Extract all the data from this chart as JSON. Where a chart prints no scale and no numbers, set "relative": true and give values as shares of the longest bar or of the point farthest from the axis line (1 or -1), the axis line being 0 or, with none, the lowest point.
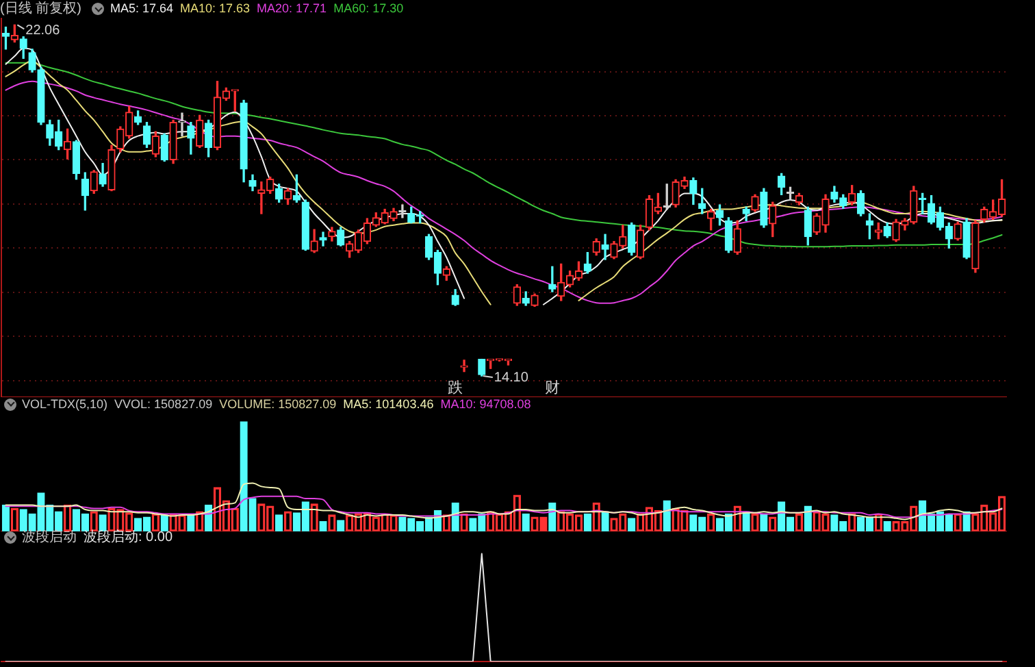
{
  "chart_data": [
    {
      "type": "candlestick",
      "title": "(日线 前复权)",
      "legend": "top left",
      "tick_labels": false,
      "grid": "y",
      "ylim": [
        13.62,
        22.22
      ],
      "yticks": [
        {
          "value": 14,
          "label": null
        },
        {
          "value": 15,
          "label": null
        },
        {
          "value": 16,
          "label": null
        },
        {
          "value": 17,
          "label": null
        },
        {
          "value": 18,
          "label": null
        },
        {
          "value": 19,
          "label": null
        },
        {
          "value": 20,
          "label": null
        },
        {
          "value": 21,
          "label": null
        }
      ],
      "categories": [
        null,
        null,
        null,
        null,
        null,
        null,
        null,
        null,
        null,
        null,
        null,
        null,
        null,
        null,
        null,
        null,
        null,
        null,
        null,
        null,
        null,
        null,
        null,
        null,
        null,
        null,
        null,
        null,
        null,
        null,
        null,
        null,
        null,
        null,
        null,
        null,
        null,
        null,
        null,
        null,
        null,
        null,
        null,
        null,
        null,
        null,
        null,
        null,
        null,
        null,
        null,
        null,
        null,
        null,
        null,
        null,
        null,
        null,
        null,
        null,
        null,
        null,
        null,
        null,
        null,
        null,
        null,
        null,
        null,
        null,
        null,
        null,
        null,
        null,
        null,
        null,
        null,
        null,
        null,
        null,
        null,
        null,
        null,
        null,
        null,
        null,
        null,
        null,
        null,
        null,
        null,
        null,
        null,
        null,
        null,
        null,
        null,
        null,
        null,
        null,
        null,
        null,
        null,
        null,
        null,
        null,
        null,
        null,
        null,
        null,
        null,
        null,
        null,
        null
      ],
      "ohlc": [
        [
          21.87,
          22.01,
          21.51,
          21.8
        ],
        [
          21.72,
          22.06,
          21.67,
          21.82
        ],
        [
          21.74,
          21.79,
          21.3,
          21.53
        ],
        [
          21.43,
          21.51,
          20.99,
          21.04
        ],
        [
          21.04,
          21.1,
          19.8,
          19.85
        ],
        [
          19.8,
          19.9,
          19.33,
          19.49
        ],
        [
          19.64,
          19.9,
          19.23,
          19.31
        ],
        [
          19.23,
          19.7,
          19.02,
          19.42
        ],
        [
          19.41,
          19.44,
          18.56,
          18.69
        ],
        [
          18.56,
          18.71,
          17.86,
          18.19
        ],
        [
          18.3,
          18.76,
          18.24,
          18.73
        ],
        [
          18.68,
          18.92,
          18.4,
          18.45
        ],
        [
          18.32,
          19.33,
          18.3,
          19.23
        ],
        [
          19.25,
          19.75,
          19.18,
          19.7
        ],
        [
          19.54,
          20.21,
          19.49,
          20.08
        ],
        [
          19.98,
          20.11,
          19.8,
          19.85
        ],
        [
          19.77,
          19.85,
          19.28,
          19.35
        ],
        [
          19.13,
          19.64,
          19.07,
          19.54
        ],
        [
          19.56,
          19.59,
          18.97,
          19.0
        ],
        [
          19.0,
          19.9,
          18.92,
          19.85
        ],
        [
          19.85,
          20.06,
          19.54,
          19.87
        ],
        [
          19.77,
          19.85,
          19.13,
          19.49
        ],
        [
          19.31,
          20.01,
          19.28,
          19.9
        ],
        [
          19.83,
          19.9,
          19.07,
          19.28
        ],
        [
          19.28,
          20.78,
          19.23,
          20.42
        ],
        [
          20.39,
          20.63,
          20.35,
          20.56
        ],
        [
          20.56,
          20.58,
          20.11,
          20.58
        ],
        [
          20.29,
          20.35,
          18.5,
          18.79
        ],
        [
          18.53,
          18.66,
          18.3,
          18.4
        ],
        [
          18.24,
          18.5,
          17.78,
          18.32
        ],
        [
          18.3,
          18.61,
          18.24,
          18.56
        ],
        [
          18.35,
          18.45,
          18.04,
          18.11
        ],
        [
          18.11,
          18.35,
          17.99,
          18.3
        ],
        [
          18.19,
          18.66,
          18.04,
          18.09
        ],
        [
          18.04,
          18.09,
          16.95,
          16.97
        ],
        [
          16.93,
          17.42,
          16.9,
          17.16
        ],
        [
          17.24,
          17.36,
          17.05,
          17.18
        ],
        [
          17.26,
          17.47,
          17.16,
          17.38
        ],
        [
          17.41,
          17.47,
          17.05,
          17.07
        ],
        [
          16.93,
          17.15,
          16.79,
          17.1
        ],
        [
          16.95,
          17.41,
          16.9,
          17.36
        ],
        [
          17.15,
          17.67,
          17.1,
          17.57
        ],
        [
          17.52,
          17.8,
          17.49,
          17.69
        ],
        [
          17.57,
          17.88,
          17.55,
          17.8
        ],
        [
          17.67,
          17.9,
          17.62,
          17.83
        ],
        [
          17.83,
          17.98,
          17.69,
          17.82
        ],
        [
          17.78,
          17.93,
          17.57,
          17.59
        ],
        [
          17.73,
          17.83,
          17.57,
          17.72
        ],
        [
          17.26,
          17.31,
          16.74,
          16.79
        ],
        [
          16.9,
          16.95,
          16.17,
          16.43
        ],
        [
          16.38,
          16.58,
          16.27,
          16.53
        ],
        [
          15.93,
          16.06,
          15.7,
          15.72
        ],
        [
          14.3,
          14.46,
          14.2,
          14.32
        ],
        null,
        [
          14.48,
          14.48,
          14.1,
          14.13
        ],
        [
          14.45,
          14.47,
          14.27,
          14.46
        ],
        [
          14.46,
          14.48,
          14.44,
          14.46
        ],
        [
          14.45,
          14.48,
          14.35,
          14.47
        ],
        [
          15.75,
          16.17,
          15.7,
          16.12
        ],
        [
          15.86,
          16.01,
          15.7,
          15.75
        ],
        [
          15.7,
          15.96,
          15.68,
          15.93
        ],
        null,
        [
          16.17,
          16.58,
          16.01,
          16.07
        ],
        [
          15.91,
          16.64,
          15.81,
          16.22
        ],
        [
          16.17,
          16.48,
          16.12,
          16.38
        ],
        [
          16.32,
          16.69,
          16.27,
          16.48
        ],
        [
          16.64,
          16.9,
          16.43,
          16.48
        ],
        [
          16.9,
          17.21,
          16.84,
          17.15
        ],
        [
          17.07,
          17.31,
          16.74,
          16.97
        ],
        [
          16.79,
          17.15,
          16.76,
          17.1
        ],
        [
          17.05,
          17.52,
          17.0,
          17.26
        ],
        [
          17.52,
          17.57,
          16.84,
          16.9
        ],
        [
          16.79,
          17.52,
          16.76,
          17.41
        ],
        [
          17.47,
          18.19,
          17.41,
          18.11
        ],
        [
          17.83,
          18.24,
          17.78,
          17.93
        ],
        [
          17.94,
          18.45,
          17.88,
          17.93
        ],
        [
          17.98,
          18.55,
          17.93,
          18.5
        ],
        [
          18.4,
          18.61,
          18.35,
          18.53
        ],
        [
          18.53,
          18.59,
          17.99,
          18.24
        ],
        [
          18.01,
          18.35,
          17.78,
          17.9
        ],
        [
          17.67,
          17.88,
          17.41,
          17.83
        ],
        [
          17.85,
          17.98,
          17.52,
          17.69
        ],
        [
          17.62,
          17.69,
          16.9,
          16.95
        ],
        [
          16.9,
          17.62,
          16.86,
          17.44
        ],
        [
          17.88,
          17.93,
          17.62,
          17.78
        ],
        [
          17.86,
          18.21,
          17.83,
          18.17
        ],
        [
          18.27,
          18.35,
          17.47,
          17.52
        ],
        [
          17.55,
          18.04,
          17.26,
          17.96
        ],
        [
          18.63,
          18.69,
          18.21,
          18.38
        ],
        [
          18.25,
          18.38,
          18.09,
          18.24
        ],
        [
          18.04,
          18.24,
          17.98,
          18.19
        ],
        [
          17.86,
          17.93,
          17.07,
          17.26
        ],
        [
          17.36,
          17.78,
          17.31,
          17.73
        ],
        [
          17.52,
          18.21,
          17.36,
          18.11
        ],
        [
          18.27,
          18.4,
          18.04,
          18.11
        ],
        [
          18.14,
          18.21,
          17.9,
          17.96
        ],
        [
          18.04,
          18.42,
          17.98,
          18.24
        ],
        [
          18.24,
          18.3,
          17.73,
          17.78
        ],
        [
          17.62,
          17.78,
          17.21,
          17.52
        ],
        [
          17.36,
          17.57,
          17.21,
          17.41
        ],
        [
          17.49,
          17.57,
          17.24,
          17.28
        ],
        [
          17.18,
          17.65,
          17.15,
          17.59
        ],
        [
          17.52,
          17.67,
          17.41,
          17.62
        ],
        [
          17.59,
          18.4,
          17.55,
          18.3
        ],
        [
          18.11,
          18.24,
          17.78,
          18.1
        ],
        [
          18.01,
          18.19,
          17.55,
          17.59
        ],
        [
          17.8,
          17.93,
          17.41,
          17.47
        ],
        [
          17.49,
          17.57,
          17.0,
          17.21
        ],
        [
          17.21,
          17.59,
          17.18,
          17.55
        ],
        [
          17.59,
          17.67,
          16.76,
          16.79
        ],
        [
          16.53,
          17.62,
          16.45,
          17.57
        ],
        [
          17.65,
          17.93,
          17.59,
          17.88
        ],
        [
          17.7,
          18.09,
          17.65,
          17.83
        ],
        [
          17.76,
          18.55,
          17.72,
          18.11
        ]
      ],
      "colors": [
        "#54fcfc",
        "#ff3232",
        "#54fcfc",
        "#54fcfc",
        "#54fcfc",
        "#54fcfc",
        "#54fcfc",
        "#ff3232",
        "#54fcfc",
        "#54fcfc",
        "#ff3232",
        "#54fcfc",
        "#ff3232",
        "#ff3232",
        "#ff3232",
        "#54fcfc",
        "#54fcfc",
        "#ff3232",
        "#54fcfc",
        "#ff3232",
        "#d2d2d2",
        "#54fcfc",
        "#ff3232",
        "#54fcfc",
        "#ff3232",
        "#ff3232",
        "#ff3232",
        "#54fcfc",
        "#54fcfc",
        "#ff3232",
        "#ff3232",
        "#54fcfc",
        "#ff3232",
        "#54fcfc",
        "#54fcfc",
        "#ff3232",
        "#54fcfc",
        "#ff3232",
        "#54fcfc",
        "#ff3232",
        "#ff3232",
        "#ff3232",
        "#ff3232",
        "#ff3232",
        "#ff3232",
        "#d2d2d2",
        "#54fcfc",
        "#54fcfc",
        "#54fcfc",
        "#54fcfc",
        "#ff3232",
        "#54fcfc",
        "#ff3232",
        "#54fcfc",
        "#54fcfc",
        "#ff3232",
        "#ff3232",
        "#ff3232",
        "#ff3232",
        "#54fcfc",
        "#ff3232",
        "#ff3232",
        "#54fcfc",
        "#ff3232",
        "#ff3232",
        "#ff3232",
        "#54fcfc",
        "#ff3232",
        "#54fcfc",
        "#ff3232",
        "#ff3232",
        "#54fcfc",
        "#ff3232",
        "#ff3232",
        "#ff3232",
        "#d2d2d2",
        "#ff3232",
        "#ff3232",
        "#54fcfc",
        "#54fcfc",
        "#ff3232",
        "#54fcfc",
        "#54fcfc",
        "#ff3232",
        "#54fcfc",
        "#ff3232",
        "#54fcfc",
        "#ff3232",
        "#54fcfc",
        "#d2d2d2",
        "#ff3232",
        "#54fcfc",
        "#ff3232",
        "#ff3232",
        "#54fcfc",
        "#54fcfc",
        "#ff3232",
        "#54fcfc",
        "#54fcfc",
        "#ff3232",
        "#54fcfc",
        "#ff3232",
        "#ff3232",
        "#ff3232",
        "#54fcfc",
        "#54fcfc",
        "#54fcfc",
        "#54fcfc",
        "#ff3232",
        "#54fcfc",
        "#ff3232",
        "#ff3232",
        "#ff3232",
        "#ff3232"
      ],
      "value_labels": [
        null,
        "22.06",
        null,
        null,
        null,
        null,
        null,
        null,
        null,
        null,
        null,
        null,
        null,
        null,
        null,
        null,
        null,
        null,
        null,
        null,
        null,
        null,
        null,
        null,
        null,
        null,
        null,
        null,
        null,
        null,
        null,
        null,
        null,
        null,
        null,
        null,
        null,
        null,
        null,
        null,
        null,
        null,
        null,
        null,
        null,
        null,
        null,
        null,
        null,
        null,
        null,
        "跌",
        null,
        null,
        "14.10",
        null,
        null,
        null,
        null,
        null,
        null,
        null,
        "财",
        null,
        null,
        null,
        null,
        null,
        null,
        null,
        null,
        null,
        null,
        null,
        null,
        null,
        null,
        null,
        null,
        null,
        null,
        null,
        null,
        null,
        null,
        null,
        null,
        null,
        null,
        null,
        null,
        null,
        null,
        null,
        null,
        null,
        null,
        null,
        null,
        null,
        null,
        null,
        null,
        null,
        null,
        null,
        null,
        null,
        null,
        null,
        null,
        null,
        null,
        null
      ],
      "series": [
        {
          "name": "MA5: 17.64",
          "type": "line",
          "color": "#f0f0f0",
          "values": [
            21.17,
            21.35,
            21.53,
            21.49,
            21.09,
            20.63,
            20.26,
            19.9,
            19.54,
            19.18,
            18.92,
            18.66,
            18.81,
            19.18,
            19.44,
            19.54,
            19.59,
            19.62,
            19.59,
            19.62,
            19.64,
            19.64,
            19.66,
            19.7,
            19.85,
            20.01,
            20.08,
            19.9,
            19.54,
            19.07,
            18.55,
            18.4,
            18.35,
            18.29,
            18.04,
            17.78,
            17.57,
            17.36,
            17.24,
            17.26,
            17.38,
            17.52,
            17.62,
            17.69,
            17.74,
            17.78,
            17.78,
            17.72,
            17.52,
            17.15,
            16.79,
            16.33,
            15.86,
            null,
            null,
            null,
            null,
            null,
            null,
            null,
            null,
            15.72,
            15.86,
            16.01,
            16.2,
            16.38,
            16.45,
            16.58,
            16.79,
            16.89,
            16.97,
            17.05,
            17.21,
            17.41,
            17.62,
            17.88,
            18.09,
            18.24,
            18.24,
            18.17,
            17.93,
            17.67,
            17.57,
            17.59,
            17.72,
            17.8,
            17.86,
            17.93,
            18.04,
            18.09,
            18.04,
            17.9,
            17.86,
            17.93,
            17.98,
            18.01,
            18.04,
            17.98,
            17.83,
            17.67,
            17.57,
            17.55,
            17.59,
            17.72,
            17.78,
            17.78,
            17.72,
            17.67,
            17.62,
            17.57,
            17.57,
            17.59,
            17.62,
            17.64
          ]
        },
        {
          "name": "MA10: 17.63",
          "type": "line",
          "color": "#e8dc78",
          "values": [
            20.89,
            21.01,
            21.15,
            21.25,
            21.09,
            20.91,
            20.73,
            20.58,
            20.35,
            20.11,
            19.9,
            19.64,
            19.38,
            19.25,
            19.18,
            19.18,
            19.2,
            19.23,
            19.33,
            19.46,
            19.51,
            19.56,
            19.62,
            19.67,
            19.75,
            19.8,
            19.85,
            19.87,
            19.75,
            19.59,
            19.33,
            19.07,
            18.81,
            18.5,
            18.24,
            18.04,
            17.86,
            17.67,
            17.5,
            17.38,
            17.33,
            17.36,
            17.41,
            17.49,
            17.52,
            17.55,
            17.57,
            17.57,
            17.52,
            17.41,
            17.26,
            16.89,
            16.64,
            16.33,
            16.01,
            15.72,
            null,
            null,
            null,
            null,
            null,
            null,
            null,
            null,
            null,
            15.81,
            15.96,
            16.1,
            16.22,
            16.35,
            16.58,
            16.74,
            16.88,
            17.04,
            17.2,
            17.34,
            17.49,
            17.65,
            17.76,
            17.8,
            17.85,
            17.88,
            17.88,
            17.9,
            17.93,
            17.96,
            17.98,
            17.98,
            17.96,
            17.93,
            17.91,
            17.9,
            17.9,
            17.91,
            17.93,
            17.96,
            18.01,
            18.04,
            17.98,
            17.9,
            17.83,
            17.78,
            17.78,
            17.81,
            17.83,
            17.82,
            17.8,
            17.76,
            17.71,
            17.67,
            17.63,
            17.61,
            17.62,
            17.63
          ]
        },
        {
          "name": "MA20: 17.71",
          "type": "line",
          "color": "#e040e0",
          "values": [
            20.58,
            20.68,
            20.75,
            20.78,
            20.75,
            20.72,
            20.68,
            20.63,
            20.56,
            20.47,
            20.41,
            20.36,
            20.31,
            20.26,
            20.22,
            20.18,
            20.13,
            20.07,
            20.01,
            19.95,
            19.9,
            19.8,
            19.66,
            19.56,
            19.52,
            19.54,
            19.54,
            19.52,
            19.49,
            19.47,
            19.44,
            19.38,
            19.33,
            19.28,
            19.18,
            19.07,
            18.97,
            18.83,
            18.71,
            18.66,
            18.61,
            18.53,
            18.46,
            18.4,
            18.29,
            18.12,
            17.96,
            17.83,
            17.67,
            17.55,
            17.43,
            17.31,
            17.17,
            17.0,
            16.86,
            16.72,
            16.61,
            16.51,
            16.43,
            16.37,
            16.3,
            16.24,
            16.16,
            16.09,
            15.99,
            15.89,
            15.81,
            15.76,
            15.75,
            15.76,
            15.81,
            15.86,
            15.96,
            16.12,
            16.27,
            16.48,
            16.72,
            16.89,
            17.05,
            17.15,
            17.28,
            17.41,
            17.49,
            17.55,
            17.59,
            17.62,
            17.66,
            17.69,
            17.73,
            17.78,
            17.81,
            17.83,
            17.85,
            17.87,
            17.88,
            17.9,
            17.92,
            17.93,
            17.92,
            17.89,
            17.86,
            17.82,
            17.78,
            17.76,
            17.73,
            17.71,
            17.7,
            17.69,
            17.67,
            17.65,
            17.64,
            17.65,
            17.67,
            17.71
          ]
        },
        {
          "name": "MA60: 17.30",
          "type": "line",
          "color": "#3cc83c",
          "values": [
            21.2,
            21.2,
            21.2,
            21.2,
            21.15,
            21.09,
            21.04,
            20.99,
            20.92,
            20.84,
            20.77,
            20.72,
            20.66,
            20.61,
            20.56,
            20.51,
            20.45,
            20.39,
            20.34,
            20.28,
            20.21,
            20.16,
            20.12,
            20.08,
            20.06,
            20.06,
            20.05,
            20.03,
            20.0,
            19.96,
            19.93,
            19.89,
            19.85,
            19.81,
            19.77,
            19.73,
            19.68,
            19.64,
            19.6,
            19.58,
            19.56,
            19.53,
            19.51,
            19.48,
            19.41,
            19.35,
            19.31,
            19.26,
            19.21,
            19.1,
            18.99,
            18.9,
            18.79,
            18.7,
            18.58,
            18.46,
            18.36,
            18.26,
            18.15,
            18.05,
            17.94,
            17.85,
            17.78,
            17.7,
            17.66,
            17.63,
            17.61,
            17.59,
            17.57,
            17.55,
            17.53,
            17.51,
            17.5,
            17.48,
            17.47,
            17.44,
            17.41,
            17.39,
            17.38,
            17.36,
            17.33,
            17.28,
            17.24,
            17.17,
            17.11,
            17.08,
            17.06,
            17.05,
            17.04,
            17.04,
            17.03,
            17.03,
            17.03,
            17.03,
            17.04,
            17.04,
            17.05,
            17.05,
            17.05,
            17.06,
            17.06,
            17.07,
            17.07,
            17.07,
            17.07,
            17.08,
            17.08,
            17.08,
            17.08,
            17.08,
            17.11,
            17.17,
            17.23,
            17.3
          ]
        }
      ]
    },
    {
      "type": "bar",
      "title": "VOL-TDX(5,10)",
      "subtitle": "VVOL: 150827.09",
      "annotations": [
        "VOLUME: 150827.09"
      ],
      "relative": true,
      "legend": "top left",
      "tick_labels": false,
      "categories": [
        null,
        null,
        null,
        null,
        null,
        null,
        null,
        null,
        null,
        null,
        null,
        null,
        null,
        null,
        null,
        null,
        null,
        null,
        null,
        null,
        null,
        null,
        null,
        null,
        null,
        null,
        null,
        null,
        null,
        null,
        null,
        null,
        null,
        null,
        null,
        null,
        null,
        null,
        null,
        null,
        null,
        null,
        null,
        null,
        null,
        null,
        null,
        null,
        null,
        null,
        null,
        null,
        null,
        null,
        null,
        null,
        null,
        null,
        null,
        null,
        null,
        null,
        null,
        null,
        null,
        null,
        null,
        null,
        null,
        null,
        null,
        null,
        null,
        null,
        null,
        null,
        null,
        null,
        null,
        null,
        null,
        null,
        null,
        null,
        null,
        null,
        null,
        null,
        null,
        null,
        null,
        null,
        null,
        null,
        null,
        null,
        null,
        null,
        null,
        null,
        null,
        null,
        null,
        null,
        null,
        null,
        null,
        null,
        null,
        null,
        null,
        null,
        null,
        null
      ],
      "series": [
        {
          "colors": [
            "#54fcfc",
            "#ff3232",
            "#54fcfc",
            "#54fcfc",
            "#54fcfc",
            "#54fcfc",
            "#54fcfc",
            "#ff3232",
            "#54fcfc",
            "#54fcfc",
            "#ff3232",
            "#54fcfc",
            "#ff3232",
            "#ff3232",
            "#ff3232",
            "#54fcfc",
            "#54fcfc",
            "#ff3232",
            "#54fcfc",
            "#ff3232",
            "#ff3232",
            "#54fcfc",
            "#ff3232",
            "#54fcfc",
            "#ff3232",
            "#ff3232",
            "#ff3232",
            "#54fcfc",
            "#54fcfc",
            "#ff3232",
            "#ff3232",
            "#54fcfc",
            "#ff3232",
            "#54fcfc",
            "#54fcfc",
            "#ff3232",
            "#54fcfc",
            "#ff3232",
            "#54fcfc",
            "#ff3232",
            "#ff3232",
            "#ff3232",
            "#ff3232",
            "#ff3232",
            "#ff3232",
            "#54fcfc",
            "#54fcfc",
            "#54fcfc",
            "#54fcfc",
            "#54fcfc",
            "#ff3232",
            "#54fcfc",
            "#ff3232",
            "#54fcfc",
            "#54fcfc",
            "#ff3232",
            "#ff3232",
            "#ff3232",
            "#ff3232",
            "#54fcfc",
            "#ff3232",
            "#ff3232",
            "#54fcfc",
            "#ff3232",
            "#ff3232",
            "#ff3232",
            "#54fcfc",
            "#ff3232",
            "#54fcfc",
            "#ff3232",
            "#ff3232",
            "#54fcfc",
            "#ff3232",
            "#ff3232",
            "#ff3232",
            "#54fcfc",
            "#ff3232",
            "#ff3232",
            "#54fcfc",
            "#54fcfc",
            "#ff3232",
            "#54fcfc",
            "#54fcfc",
            "#ff3232",
            "#54fcfc",
            "#ff3232",
            "#54fcfc",
            "#ff3232",
            "#54fcfc",
            "#54fcfc",
            "#ff3232",
            "#54fcfc",
            "#ff3232",
            "#ff3232",
            "#54fcfc",
            "#54fcfc",
            "#ff3232",
            "#54fcfc",
            "#54fcfc",
            "#ff3232",
            "#54fcfc",
            "#ff3232",
            "#ff3232",
            "#ff3232",
            "#54fcfc",
            "#54fcfc",
            "#54fcfc",
            "#54fcfc",
            "#ff3232",
            "#54fcfc",
            "#ff3232",
            "#ff3232",
            "#ff3232",
            "#ff3232"
          ],
          "values": [
            0.24,
            0.21,
            0.2,
            0.16,
            0.35,
            0.24,
            0.18,
            0.24,
            0.2,
            0.16,
            0.18,
            0.15,
            0.21,
            0.2,
            0.17,
            0.12,
            0.13,
            0.16,
            0.15,
            0.16,
            0.15,
            0.15,
            0.18,
            0.24,
            0.4,
            0.28,
            0.21,
            1,
            0.3,
            0.25,
            0.23,
            0.15,
            0.18,
            0.17,
            0.27,
            0.25,
            0.09,
            0.15,
            0.1,
            0.15,
            0.16,
            0.17,
            0.13,
            0.16,
            0.15,
            0.13,
            0.12,
            0.09,
            0.13,
            0.19,
            0.15,
            0.26,
            0.16,
            0.12,
            0.16,
            0.18,
            0.16,
            0.18,
            0.33,
            0.16,
            0.13,
            0.13,
            0.26,
            0.18,
            0.16,
            0.15,
            0.16,
            0.26,
            0.18,
            0.12,
            0.16,
            0.12,
            0.16,
            0.22,
            0.19,
            0.28,
            0.21,
            0.19,
            0.15,
            0.13,
            0.16,
            0.12,
            0.16,
            0.23,
            0.18,
            0.16,
            0.16,
            0.13,
            0.27,
            0.13,
            0.16,
            0.23,
            0.18,
            0.16,
            0.15,
            0.09,
            0.16,
            0.13,
            0.13,
            0.16,
            0.09,
            0.09,
            0.09,
            0.23,
            0.28,
            0.16,
            0.18,
            0.16,
            0.16,
            0.18,
            0.16,
            0.24,
            0.17,
            0.32
          ]
        },
        {
          "name": "MA5: 101403.46",
          "type": "line",
          "color": "#f0f0b4",
          "values": [
            0.24,
            0.24,
            0.24,
            0.24,
            0.23,
            0.23,
            0.23,
            0.23,
            0.24,
            0.2,
            0.19,
            0.19,
            0.18,
            0.18,
            0.18,
            0.17,
            0.17,
            0.16,
            0.15,
            0.14,
            0.15,
            0.15,
            0.16,
            0.18,
            0.22,
            0.25,
            0.26,
            0.43,
            0.44,
            0.41,
            0.4,
            0.39,
            0.22,
            0.2,
            0.2,
            0.2,
            0.19,
            0.19,
            0.17,
            0.15,
            0.13,
            0.15,
            0.14,
            0.15,
            0.15,
            0.15,
            0.14,
            0.13,
            0.12,
            0.13,
            0.14,
            0.16,
            0.18,
            0.18,
            0.17,
            0.18,
            0.16,
            0.16,
            0.2,
            0.2,
            0.19,
            0.19,
            0.2,
            0.17,
            0.17,
            0.18,
            0.18,
            0.18,
            0.18,
            0.17,
            0.18,
            0.17,
            0.15,
            0.16,
            0.17,
            0.19,
            0.21,
            0.22,
            0.2,
            0.19,
            0.17,
            0.15,
            0.14,
            0.16,
            0.17,
            0.17,
            0.18,
            0.17,
            0.18,
            0.17,
            0.17,
            0.18,
            0.19,
            0.17,
            0.18,
            0.16,
            0.15,
            0.14,
            0.13,
            0.13,
            0.13,
            0.12,
            0.11,
            0.13,
            0.16,
            0.17,
            0.19,
            0.2,
            0.19,
            0.17,
            0.17,
            0.18,
            0.18,
            0.21
          ]
        },
        {
          "name": "MA10: 94708.08",
          "type": "line",
          "color": "#e040e0",
          "values": [
            0.23,
            0.23,
            0.23,
            0.23,
            0.23,
            0.23,
            0.23,
            0.23,
            0.23,
            0.22,
            0.21,
            0.21,
            0.22,
            0.22,
            0.19,
            0.18,
            0.18,
            0.17,
            0.16,
            0.16,
            0.16,
            0.16,
            0.16,
            0.16,
            0.18,
            0.2,
            0.21,
            0.29,
            0.31,
            0.32,
            0.32,
            0.32,
            0.32,
            0.32,
            0.3,
            0.3,
            0.29,
            0.2,
            0.18,
            0.17,
            0.17,
            0.17,
            0.16,
            0.16,
            0.15,
            0.14,
            0.14,
            0.14,
            0.14,
            0.14,
            0.14,
            0.15,
            0.15,
            0.15,
            0.15,
            0.16,
            0.16,
            0.17,
            0.19,
            0.19,
            0.18,
            0.17,
            0.18,
            0.19,
            0.19,
            0.18,
            0.18,
            0.19,
            0.18,
            0.17,
            0.18,
            0.18,
            0.17,
            0.17,
            0.17,
            0.19,
            0.19,
            0.18,
            0.18,
            0.18,
            0.18,
            0.18,
            0.18,
            0.18,
            0.18,
            0.17,
            0.16,
            0.16,
            0.17,
            0.17,
            0.17,
            0.18,
            0.18,
            0.18,
            0.17,
            0.17,
            0.17,
            0.17,
            0.15,
            0.16,
            0.15,
            0.13,
            0.13,
            0.13,
            0.15,
            0.15,
            0.15,
            0.16,
            0.16,
            0.16,
            0.17,
            0.18,
            0.19,
            0.2
          ]
        }
      ]
    },
    {
      "type": "line",
      "title": "波段启动",
      "relative": true,
      "legend": "top left",
      "tick_labels": false,
      "categories": [
        null,
        null,
        null,
        null,
        null,
        null,
        null,
        null,
        null,
        null,
        null,
        null,
        null,
        null,
        null,
        null,
        null,
        null,
        null,
        null,
        null,
        null,
        null,
        null,
        null,
        null,
        null,
        null,
        null,
        null,
        null,
        null,
        null,
        null,
        null,
        null,
        null,
        null,
        null,
        null,
        null,
        null,
        null,
        null,
        null,
        null,
        null,
        null,
        null,
        null,
        null,
        null,
        null,
        null,
        null,
        null,
        null,
        null,
        null,
        null,
        null,
        null,
        null,
        null,
        null,
        null,
        null,
        null,
        null,
        null,
        null,
        null,
        null,
        null,
        null,
        null,
        null,
        null,
        null,
        null,
        null,
        null,
        null,
        null,
        null,
        null,
        null,
        null,
        null,
        null,
        null,
        null,
        null,
        null,
        null,
        null,
        null,
        null,
        null,
        null,
        null,
        null,
        null,
        null,
        null,
        null,
        null,
        null,
        null,
        null,
        null,
        null,
        null,
        null
      ],
      "series": [
        {
          "name": "波段启动: 0.00",
          "color": "#e6e6e6",
          "values": [
            0,
            0,
            0,
            0,
            0,
            0,
            0,
            0,
            0,
            0,
            0,
            0,
            0,
            0,
            0,
            0,
            0,
            0,
            0,
            0,
            0,
            0,
            0,
            0,
            0,
            0,
            0,
            0,
            0,
            0,
            0,
            0,
            0,
            0,
            0,
            0,
            0,
            0,
            0,
            0,
            0,
            0,
            0,
            0,
            0,
            0,
            0,
            0,
            0,
            0,
            0,
            0,
            0,
            0,
            1,
            0,
            0,
            0,
            0,
            0,
            0,
            0,
            0,
            0,
            0,
            0,
            0,
            0,
            0,
            0,
            0,
            0,
            0,
            0,
            0,
            0,
            0,
            0,
            0,
            0,
            0,
            0,
            0,
            0,
            0,
            0,
            0,
            0,
            0,
            0,
            0,
            0,
            0,
            0,
            0,
            0,
            0,
            0,
            0,
            0,
            0,
            0,
            0,
            0,
            0,
            0,
            0,
            0,
            0,
            0,
            0,
            0,
            0,
            0
          ]
        }
      ]
    }
  ]
}
